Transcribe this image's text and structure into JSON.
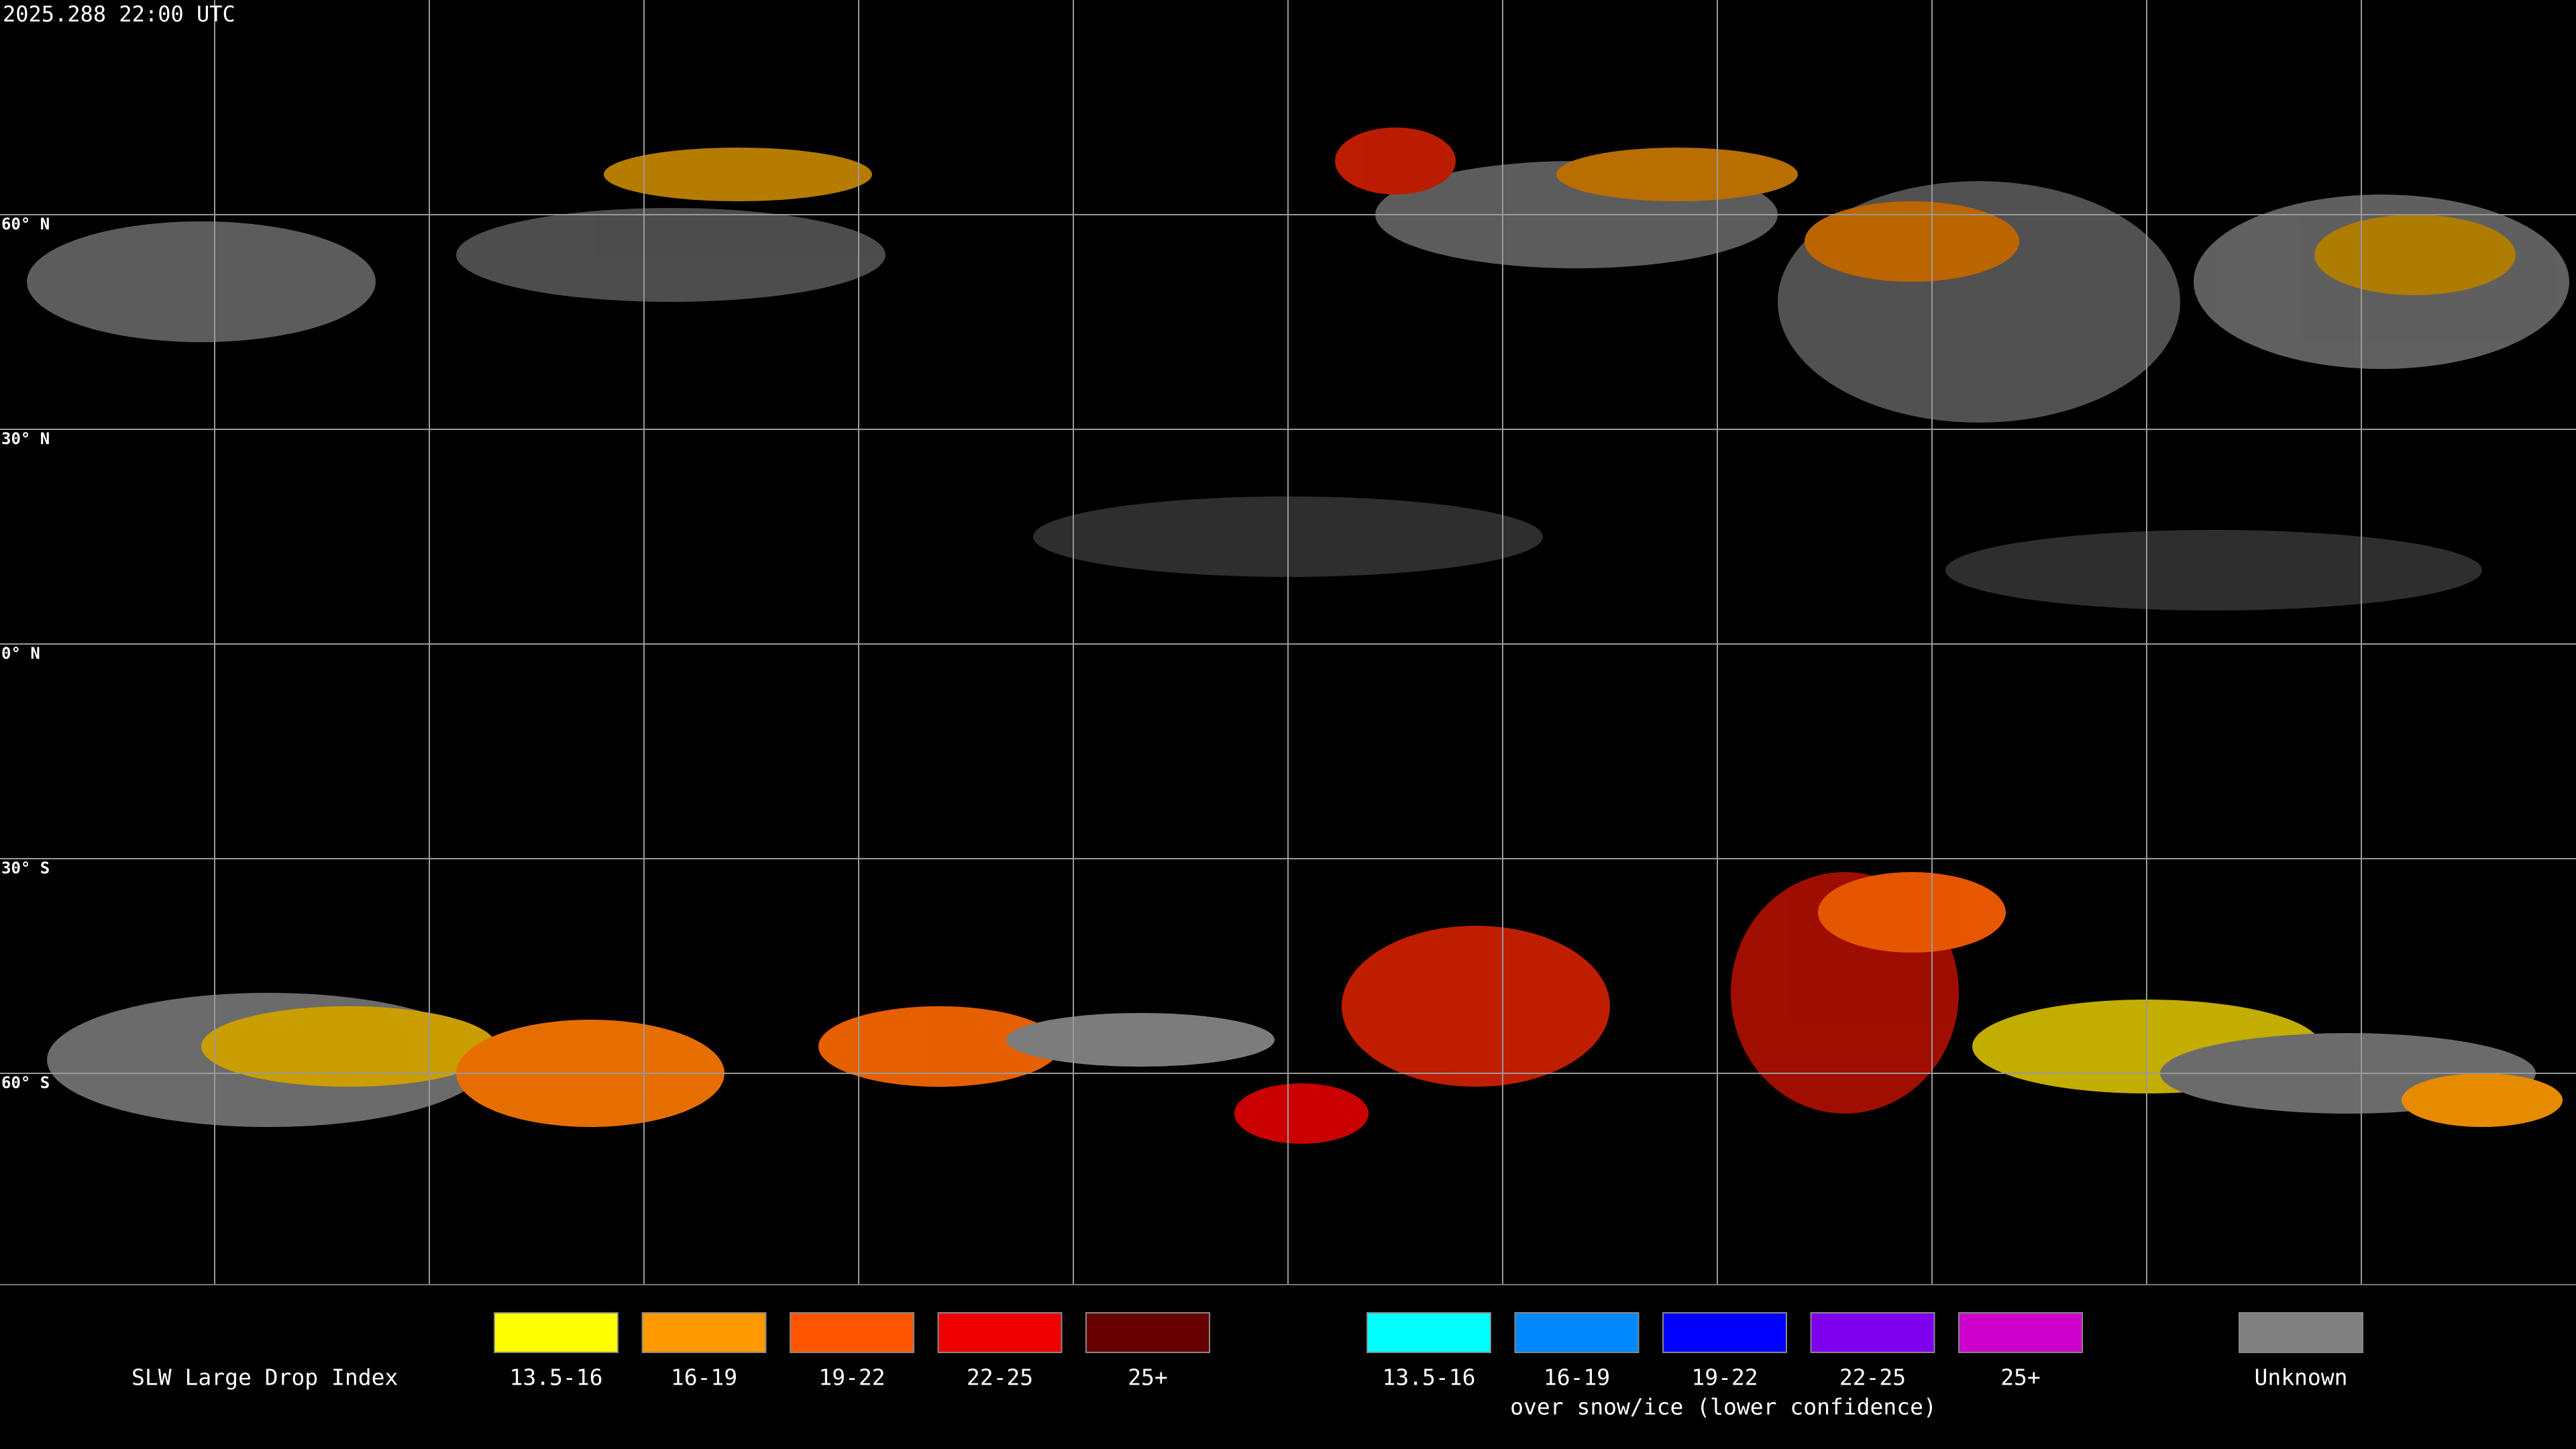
{
  "header": {
    "timestamp": "2025.288 22:00 UTC"
  },
  "map": {
    "latitude_labels": [
      "60° N",
      "30° N",
      "0° N",
      "30° S",
      "60° S"
    ]
  },
  "legend": {
    "title": "SLW Large Drop Index",
    "groups": [
      {
        "items": [
          {
            "label": "13.5-16",
            "color": "#ffff00"
          },
          {
            "label": "16-19",
            "color": "#ff9900"
          },
          {
            "label": "19-22",
            "color": "#ff5500"
          },
          {
            "label": "22-25",
            "color": "#ee0000"
          },
          {
            "label": "25+",
            "color": "#660000"
          }
        ]
      },
      {
        "caption": "over snow/ice (lower confidence)",
        "items": [
          {
            "label": "13.5-16",
            "color": "#00ffff"
          },
          {
            "label": "16-19",
            "color": "#0088ff"
          },
          {
            "label": "19-22",
            "color": "#0000ff"
          },
          {
            "label": "22-25",
            "color": "#7f00ee"
          },
          {
            "label": "25+",
            "color": "#cc00cc"
          }
        ]
      },
      {
        "items": [
          {
            "label": "Unknown",
            "color": "#808080"
          }
        ]
      }
    ]
  }
}
